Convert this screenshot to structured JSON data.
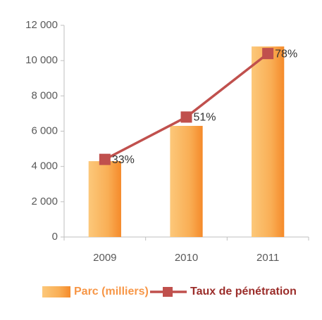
{
  "chart_data": {
    "type": "combo",
    "categories": [
      "2009",
      "2010",
      "2011"
    ],
    "series": [
      {
        "name": "Parc (milliers)",
        "type": "bar",
        "color": "#f79646",
        "values": [
          4300,
          6300,
          10800
        ]
      },
      {
        "name": "Taux de pénétration",
        "type": "line",
        "color": "#c0504d",
        "axis": "y2",
        "values": [
          33,
          51,
          78
        ],
        "value_labels": [
          "33%",
          "51%",
          "78%"
        ]
      }
    ],
    "ylim": [
      0,
      12000
    ],
    "yticks": [
      0,
      {
        "value": 2000,
        "label": "2 000"
      },
      {
        "value": 4000,
        "label": "4 000"
      },
      {
        "value": 6000,
        "label": "6 000"
      },
      {
        "value": 8000,
        "label": "8 000"
      },
      {
        "value": 10000,
        "label": "10 000"
      },
      {
        "value": 12000,
        "label": "12 000"
      }
    ],
    "y2lim": [
      0,
      90
    ],
    "legend": "bottom"
  }
}
